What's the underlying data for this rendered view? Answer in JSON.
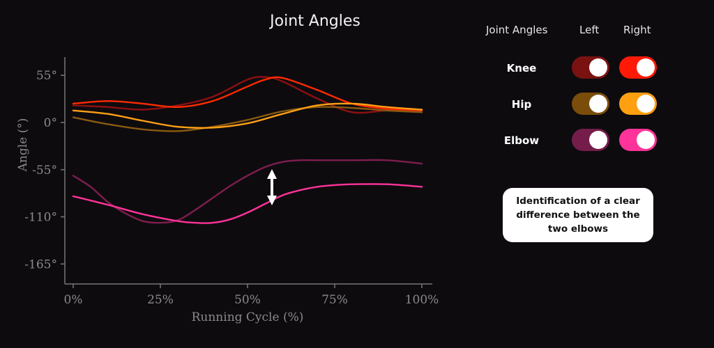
{
  "chart_data": {
    "type": "line",
    "title": "Joint Angles",
    "xlabel": "Running Cycle (%)",
    "ylabel": "Angle (°)",
    "xlim": [
      0,
      100
    ],
    "ylim": [
      -185,
      78
    ],
    "x_ticks": [
      0,
      25,
      50,
      75,
      100
    ],
    "x_tick_labels": [
      "0%",
      "25%",
      "50%",
      "75%",
      "100%"
    ],
    "y_ticks": [
      55,
      0,
      -55,
      -110,
      -165
    ],
    "y_tick_labels": [
      "55°",
      "0°",
      "-55°",
      "-110°",
      "-165°"
    ],
    "grid": false,
    "legend": "none",
    "series": [
      {
        "key": "knee_left",
        "color": "#8e1010",
        "x": [
          0,
          10,
          20,
          30,
          40,
          50,
          55,
          60,
          70,
          80,
          90,
          100
        ],
        "y": [
          20,
          18,
          15,
          20,
          30,
          50,
          53,
          48,
          28,
          12,
          14,
          14
        ]
      },
      {
        "key": "knee_right",
        "color": "#ff2a00",
        "x": [
          0,
          10,
          20,
          30,
          40,
          50,
          55,
          60,
          70,
          80,
          90,
          100
        ],
        "y": [
          22,
          25,
          22,
          18,
          25,
          42,
          50,
          52,
          38,
          22,
          16,
          14
        ]
      },
      {
        "key": "hip_left",
        "color": "#8a5a10",
        "x": [
          0,
          10,
          20,
          30,
          40,
          50,
          60,
          70,
          80,
          90,
          100
        ],
        "y": [
          6,
          -2,
          -8,
          -10,
          -5,
          3,
          13,
          18,
          17,
          14,
          12
        ]
      },
      {
        "key": "hip_right",
        "color": "#ffa015",
        "x": [
          0,
          10,
          20,
          30,
          40,
          50,
          60,
          70,
          80,
          90,
          100
        ],
        "y": [
          14,
          10,
          2,
          -5,
          -6,
          -1,
          10,
          20,
          22,
          18,
          15
        ]
      },
      {
        "key": "elbow_left",
        "color": "#7e1e4e",
        "x": [
          0,
          5,
          10,
          15,
          20,
          25,
          30,
          35,
          40,
          45,
          50,
          55,
          60,
          65,
          70,
          80,
          90,
          100
        ],
        "y": [
          -62,
          -75,
          -93,
          -106,
          -115,
          -117,
          -114,
          -102,
          -88,
          -74,
          -62,
          -52,
          -46,
          -44,
          -44,
          -44,
          -44,
          -48
        ]
      },
      {
        "key": "elbow_right",
        "color": "#ff3399",
        "x": [
          0,
          10,
          20,
          30,
          35,
          40,
          45,
          50,
          55,
          60,
          65,
          70,
          75,
          80,
          90,
          100
        ],
        "y": [
          -86,
          -96,
          -107,
          -115,
          -117,
          -117,
          -113,
          -105,
          -95,
          -85,
          -79,
          -75,
          -73,
          -72,
          -72,
          -75
        ]
      }
    ],
    "annotation_arrow": {
      "x": 57,
      "y_from": -56,
      "y_to": -95
    }
  },
  "panel": {
    "header_joint": "Joint Angles",
    "header_left": "Left",
    "header_right": "Right",
    "rows": [
      {
        "label": "Knee",
        "left_color": "#7a1212",
        "right_color": "#ff1a08"
      },
      {
        "label": "Hip",
        "left_color": "#7a4d0a",
        "right_color": "#ffa010"
      },
      {
        "label": "Elbow",
        "left_color": "#741d4b",
        "right_color": "#ff3399"
      }
    ]
  },
  "callout": {
    "text": "Identification of a clear difference between the two elbows"
  }
}
